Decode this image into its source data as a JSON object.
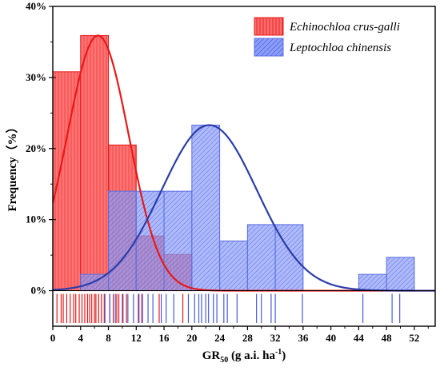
{
  "chart_data": {
    "type": "histogram",
    "title": "",
    "xlabel": "GR",
    "xlabel_sub": "50",
    "xlabel_units": " (g a.i. ha",
    "xlabel_sup": "-1",
    "xlabel_close": ")",
    "ylabel": "Frequency（%）",
    "xlim": [
      0,
      55
    ],
    "ylim": [
      -5,
      40
    ],
    "xticks": [
      0,
      4,
      8,
      12,
      16,
      20,
      24,
      28,
      32,
      36,
      40,
      44,
      48,
      52
    ],
    "yticks": [
      0,
      10,
      20,
      30,
      40
    ],
    "ytick_labels": [
      "0%",
      "10%",
      "20%",
      "30%",
      "40%"
    ],
    "legend_position": "top-right",
    "series": [
      {
        "name": "Echinochloa crus-galli",
        "color": "#ff6b6b",
        "edge_color": "#e81919",
        "hatch": "vertical",
        "bin_width": 4,
        "bins": [
          {
            "start": 0,
            "value": 30.8
          },
          {
            "start": 4,
            "value": 35.9
          },
          {
            "start": 8,
            "value": 20.5
          },
          {
            "start": 12,
            "value": 7.7
          },
          {
            "start": 16,
            "value": 5.1
          }
        ],
        "curve": {
          "type": "normal",
          "mean": 6.5,
          "peak": 35.9
        },
        "rug": [
          0.6,
          1.2,
          1.5,
          2.0,
          2.5,
          3.0,
          3.3,
          3.8,
          4.2,
          4.6,
          5.0,
          5.3,
          5.6,
          6.0,
          6.2,
          6.6,
          7.0,
          7.4,
          8.2,
          8.7,
          9.2,
          9.5,
          10.1,
          10.6,
          12.3,
          12.8,
          15.3,
          18.7
        ]
      },
      {
        "name": "Leptochloa chinensis",
        "color": "#8c9dfa",
        "edge_color": "#5b6ee0",
        "hatch": "diagonal",
        "bin_width": 4,
        "bins": [
          {
            "start": 4,
            "value": 2.3
          },
          {
            "start": 8,
            "value": 14.0
          },
          {
            "start": 12,
            "value": 14.0
          },
          {
            "start": 16,
            "value": 14.0
          },
          {
            "start": 20,
            "value": 23.3
          },
          {
            "start": 24,
            "value": 7.0
          },
          {
            "start": 28,
            "value": 9.3
          },
          {
            "start": 32,
            "value": 9.3
          },
          {
            "start": 44,
            "value": 2.3
          },
          {
            "start": 48,
            "value": 4.7
          }
        ],
        "curve": {
          "type": "normal",
          "mean": 22.5,
          "peak": 23.3
        },
        "rug": [
          7.5,
          8.2,
          9.0,
          10.0,
          10.8,
          11.6,
          12.4,
          12.9,
          13.7,
          14.4,
          15.6,
          16.3,
          17.4,
          19.5,
          20.4,
          21.0,
          21.4,
          22.0,
          22.4,
          23.1,
          23.6,
          24.6,
          25.1,
          26.5,
          29.3,
          30.0,
          31.4,
          32.0,
          35.9,
          44.6,
          48.8,
          49.9
        ]
      }
    ]
  }
}
